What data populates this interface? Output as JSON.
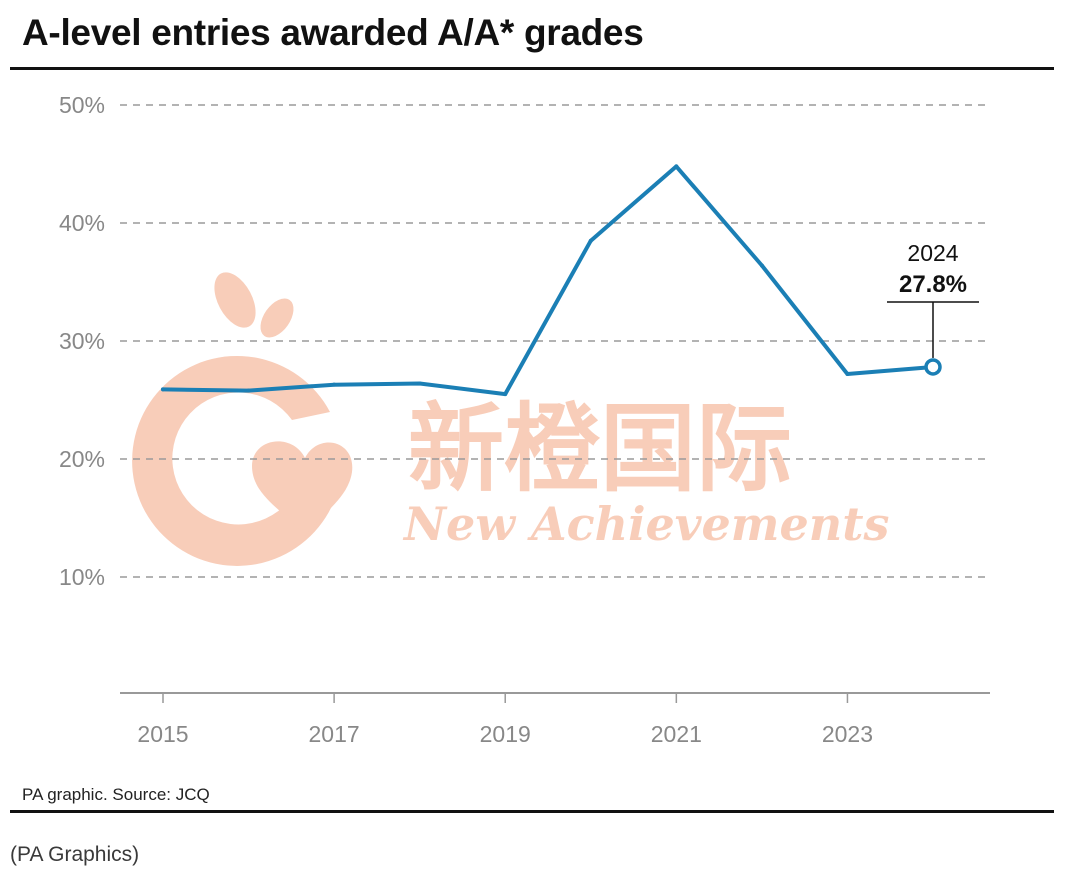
{
  "header": {
    "title": "A-level entries awarded A/A* grades"
  },
  "footer": {
    "source": "PA graphic. Source: JCQ",
    "credit": "(PA Graphics)"
  },
  "watermark": {
    "chinese": "新橙国际",
    "english": "New Achievements",
    "color": "#f7c4ad"
  },
  "chart_data": {
    "type": "line",
    "title": "A-level entries awarded A/A* grades",
    "xlabel": "",
    "ylabel": "",
    "x": [
      2015,
      2016,
      2017,
      2018,
      2019,
      2020,
      2021,
      2022,
      2023,
      2024
    ],
    "series": [
      {
        "values": [
          25.9,
          25.8,
          26.3,
          26.4,
          25.5,
          38.5,
          44.8,
          36.4,
          27.2,
          27.8
        ],
        "color": "#1b7fb5"
      }
    ],
    "x_tick_labels": [
      "2015",
      "2017",
      "2019",
      "2021",
      "2023"
    ],
    "y_tick_labels": [
      "10%",
      "20%",
      "30%",
      "40%",
      "50%"
    ],
    "ylim": [
      0,
      50
    ],
    "xlim": [
      2015,
      2024
    ],
    "grid": "horizontal dashed",
    "annotation": {
      "year": "2024",
      "value": "27.8%"
    }
  }
}
